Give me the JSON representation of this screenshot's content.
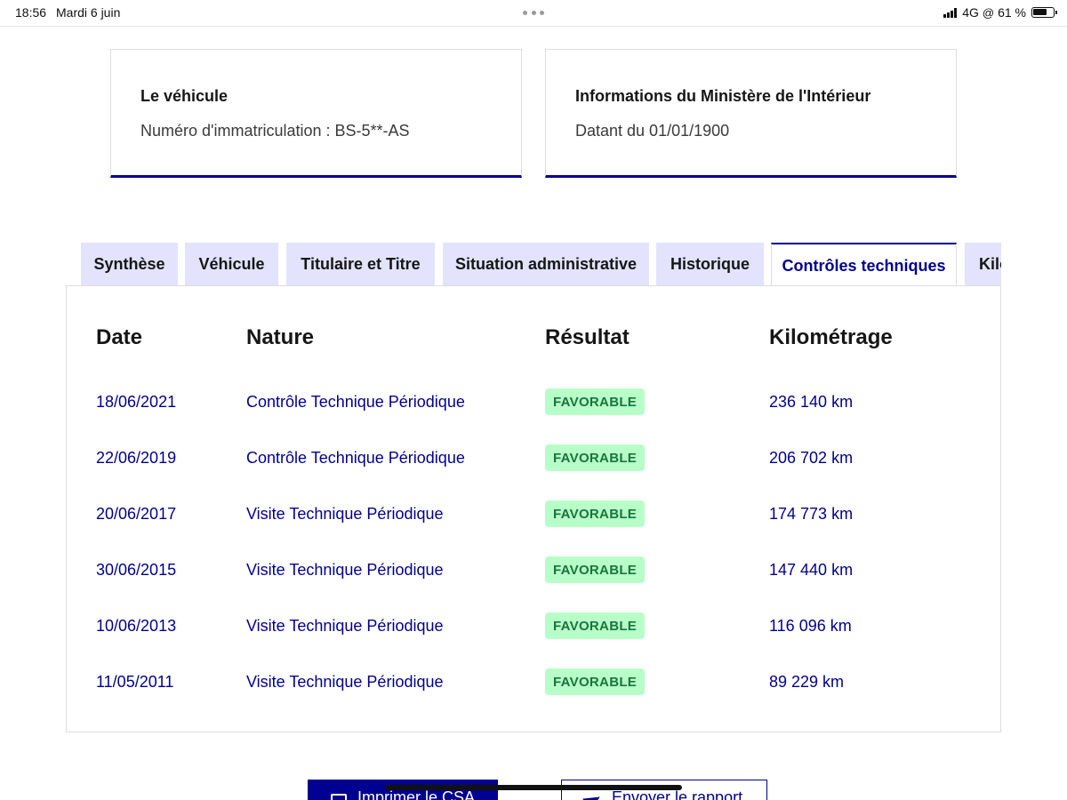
{
  "status_bar": {
    "time": "18:56",
    "date": "Mardi 6 juin",
    "network": "4G",
    "battery": "61 %"
  },
  "cards": {
    "vehicle": {
      "title": "Le véhicule",
      "text": "Numéro d'immatriculation : BS-5**-AS"
    },
    "ministry": {
      "title": "Informations du Ministère de l'Intérieur",
      "text": "Datant du 01/01/1900"
    }
  },
  "tabs": [
    {
      "label": "Synthèse"
    },
    {
      "label": "Véhicule"
    },
    {
      "label": "Titulaire et Titre"
    },
    {
      "label": "Situation administrative"
    },
    {
      "label": "Historique"
    },
    {
      "label": "Contrôles techniques",
      "active": true
    },
    {
      "label": "Kilométrage"
    }
  ],
  "table": {
    "headers": {
      "date": "Date",
      "nature": "Nature",
      "result": "Résultat",
      "mileage": "Kilométrage"
    },
    "rows": [
      {
        "date": "18/06/2021",
        "nature": "Contrôle Technique Périodique",
        "result": "FAVORABLE",
        "mileage": "236 140 km"
      },
      {
        "date": "22/06/2019",
        "nature": "Contrôle Technique Périodique",
        "result": "FAVORABLE",
        "mileage": "206 702 km"
      },
      {
        "date": "20/06/2017",
        "nature": "Visite Technique Périodique",
        "result": "FAVORABLE",
        "mileage": "174 773 km"
      },
      {
        "date": "30/06/2015",
        "nature": "Visite Technique Périodique",
        "result": "FAVORABLE",
        "mileage": "147 440 km"
      },
      {
        "date": "10/06/2013",
        "nature": "Visite Technique Périodique",
        "result": "FAVORABLE",
        "mileage": "116 096 km"
      },
      {
        "date": "11/05/2011",
        "nature": "Visite Technique Périodique",
        "result": "FAVORABLE",
        "mileage": "89 229 km"
      }
    ]
  },
  "buttons": {
    "print": "Imprimer le CSA",
    "send": "Envoyer le rapport"
  },
  "colors": {
    "primary": "#000091",
    "tab_bg": "#e3e3fd",
    "badge_bg": "#b8fec9",
    "badge_text": "#18753c"
  },
  "icons": {
    "signal": "cellular-signal-icon",
    "wifi": "orientation-lock-icon",
    "battery": "battery-icon",
    "print": "printer-icon",
    "send": "paper-plane-icon"
  }
}
